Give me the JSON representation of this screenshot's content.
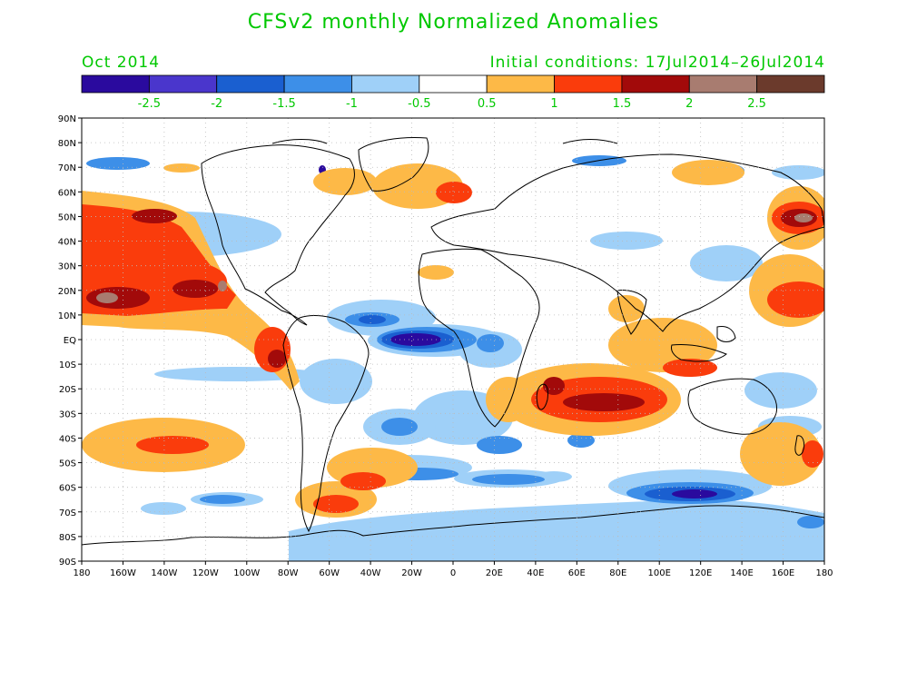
{
  "title": "CFSv2 monthly Normalized Anomalies",
  "valid_month": "Oct 2014",
  "initial_conditions": "Initial conditions: 17Jul2014–26Jul2014",
  "colorbar": {
    "colors": [
      "#2a0a9e",
      "#4a36cc",
      "#1a5fd0",
      "#3d8fe8",
      "#9fd0f8",
      "#ffffff",
      "#fdb947",
      "#fa3c0c",
      "#a20a0a",
      "#a87c70",
      "#6b3a2c"
    ],
    "labels": [
      "-2.5",
      "-2",
      "-1.5",
      "-1",
      "-0.5",
      "0.5",
      "1",
      "1.5",
      "2",
      "2.5"
    ]
  },
  "lat_labels": [
    "90N",
    "80N",
    "70N",
    "60N",
    "50N",
    "40N",
    "30N",
    "20N",
    "10N",
    "EQ",
    "10S",
    "20S",
    "30S",
    "40S",
    "50S",
    "60S",
    "70S",
    "80S",
    "90S"
  ],
  "lon_labels": [
    "180",
    "160W",
    "140W",
    "120W",
    "100W",
    "80W",
    "60W",
    "40W",
    "20W",
    "0",
    "20E",
    "40E",
    "60E",
    "80E",
    "100E",
    "120E",
    "140E",
    "160E",
    "180"
  ]
}
